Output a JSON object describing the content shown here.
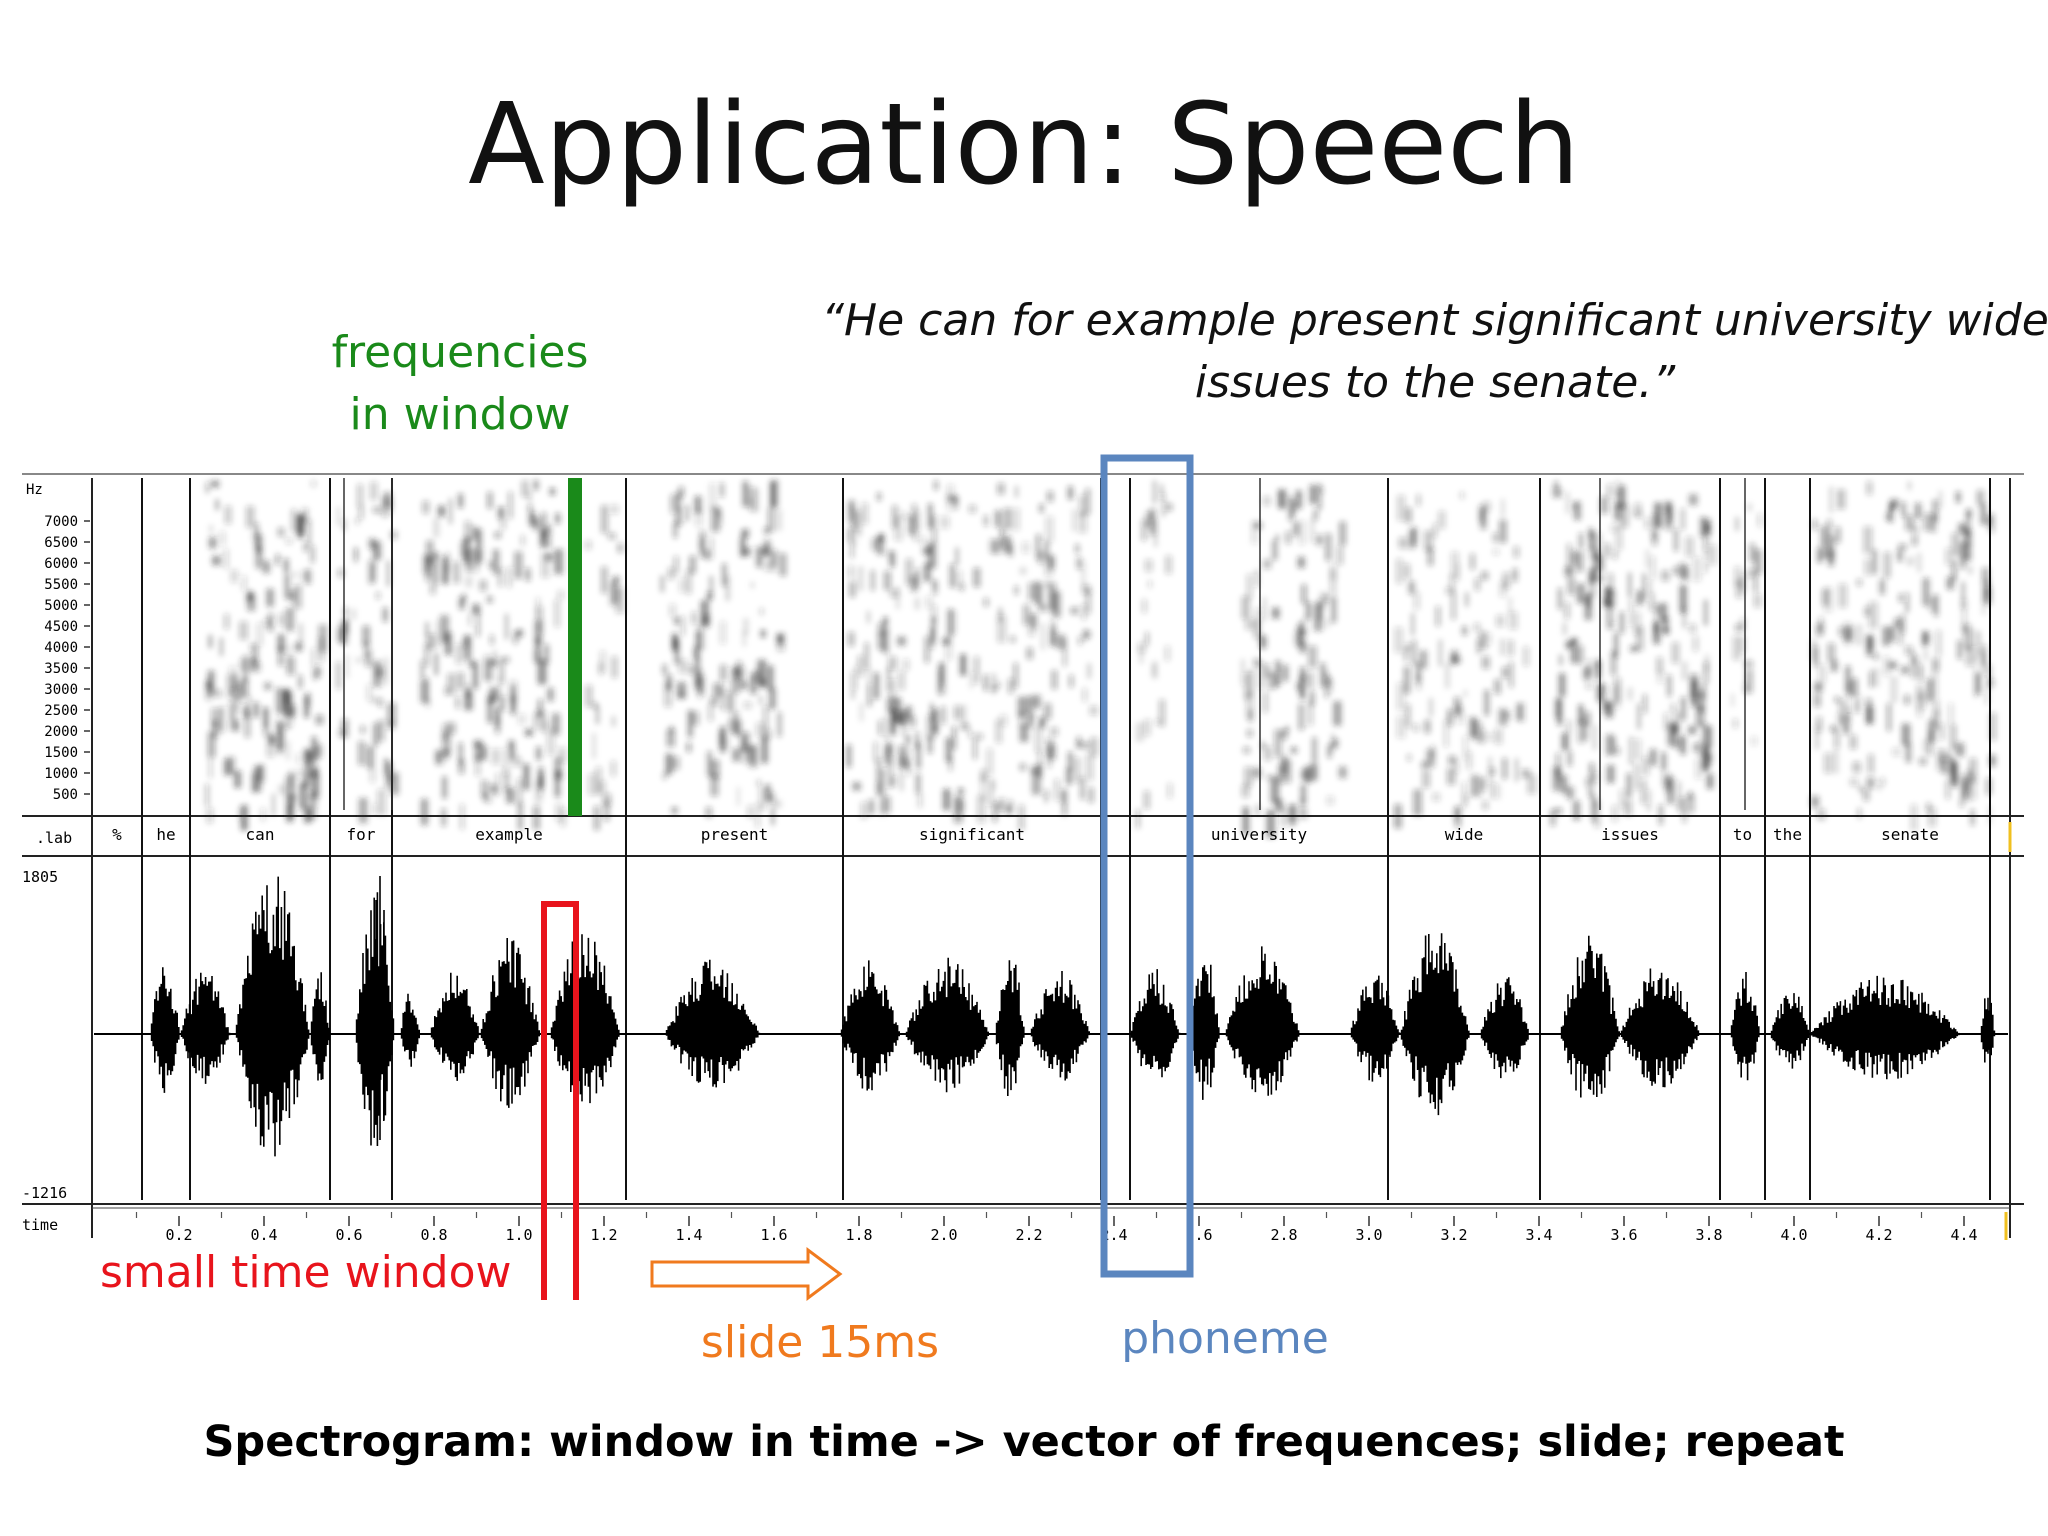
{
  "title": "Application: Speech",
  "quote": "“He can for example present significant university wide issues to the senate.”",
  "annotations": {
    "frequencies_in_window": [
      "frequencies",
      "in window"
    ],
    "small_time_window": "small time window",
    "slide": "slide 15ms",
    "phoneme": "phoneme"
  },
  "caption": "Spectrogram: window in time -> vector of frequences; slide; repeat",
  "colors": {
    "green": "#1a8a1a",
    "red": "#e8141c",
    "orange": "#f07a1e",
    "blue": "#5b86bf"
  },
  "spectrogram": {
    "axis_unit": "Hz",
    "freq_ticks": [
      "7000",
      "6500",
      "6000",
      "5500",
      "5000",
      "4500",
      "4000",
      "3500",
      "3000",
      "2500",
      "2000",
      "1500",
      "1000",
      "500"
    ]
  },
  "label_track": {
    "track_name": ".lab",
    "words": [
      "%",
      "he",
      "can",
      "for",
      "example",
      "present",
      "significant",
      "university",
      "wide",
      "issues",
      "to",
      "the",
      "senate"
    ]
  },
  "waveform": {
    "max_label": "1805",
    "min_label": "-1216"
  },
  "time_axis": {
    "name": "time",
    "ticks": [
      "0.2",
      "0.4",
      "0.6",
      "0.8",
      "1.0",
      "1.2",
      "1.4",
      "1.6",
      "1.8",
      "2.0",
      "2.2",
      "2.4",
      "2.6",
      "2.8",
      "3.0",
      "3.2",
      "3.4",
      "3.6",
      "3.8",
      "4.0",
      "4.2",
      "4.4"
    ]
  }
}
